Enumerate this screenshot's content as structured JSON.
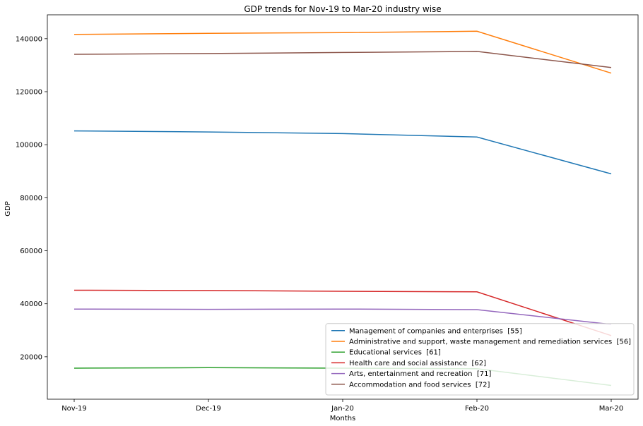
{
  "chart_data": {
    "type": "line",
    "title": "GDP trends for Nov-19 to Mar-20 industry wise",
    "xlabel": "Months",
    "ylabel": "GDP",
    "categories": [
      "Nov-19",
      "Dec-19",
      "Jan-20",
      "Feb-20",
      "Mar-20"
    ],
    "ylim": [
      4000,
      149000
    ],
    "yticks": [
      20000,
      40000,
      60000,
      80000,
      100000,
      120000,
      140000
    ],
    "grid": false,
    "legend_position": "lower-right",
    "series": [
      {
        "name": "Management of companies and enterprises  [55]",
        "color": "#1f77b4",
        "values": [
          105200,
          104800,
          104200,
          102900,
          89000
        ]
      },
      {
        "name": "Administrative and support, waste management and remediation services  [56]",
        "color": "#ff7f0e",
        "values": [
          141600,
          142000,
          142300,
          142800,
          127000
        ]
      },
      {
        "name": "Educational services  [61]",
        "color": "#2ca02c",
        "values": [
          15700,
          15900,
          15700,
          15500,
          9200
        ]
      },
      {
        "name": "Health care and social assistance  [62]",
        "color": "#d62728",
        "values": [
          45100,
          45000,
          44700,
          44500,
          28000
        ]
      },
      {
        "name": "Arts, entertainment and recreation  [71]",
        "color": "#9467bd",
        "values": [
          38000,
          37900,
          38000,
          37800,
          32200
        ]
      },
      {
        "name": "Accommodation and food services  [72]",
        "color": "#8c564b",
        "values": [
          134100,
          134400,
          134800,
          135200,
          129100
        ]
      }
    ]
  }
}
